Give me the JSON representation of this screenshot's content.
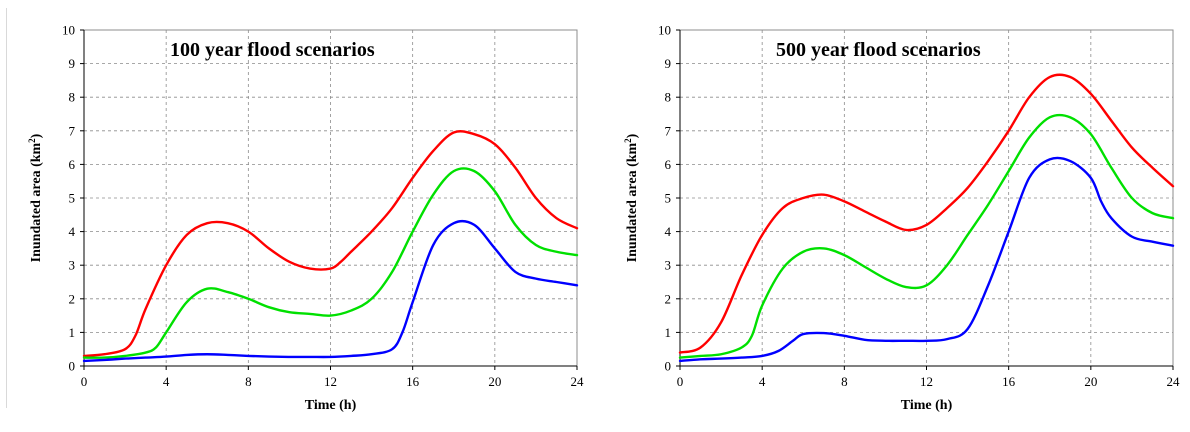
{
  "chart_data": [
    {
      "type": "line",
      "title": "100 year flood scenarios",
      "xlabel": "Time (h)",
      "ylabel_main": "Inundated area (km",
      "ylabel_sup": "2",
      "ylabel_tail": ")",
      "xlim": [
        0,
        24
      ],
      "ylim": [
        0,
        10
      ],
      "xticks": [
        0,
        4,
        8,
        12,
        16,
        20,
        24
      ],
      "yticks": [
        0,
        1,
        2,
        3,
        4,
        5,
        6,
        7,
        8,
        9,
        10
      ],
      "grid": true,
      "series": [
        {
          "color": "#ff0000",
          "x": [
            0,
            1,
            2,
            2.5,
            3,
            4,
            5,
            6,
            7,
            8,
            9,
            10,
            11,
            12,
            12.5,
            13,
            14,
            15,
            16,
            17,
            18,
            19,
            20,
            21,
            22,
            23,
            24
          ],
          "y": [
            0.3,
            0.35,
            0.5,
            0.9,
            1.7,
            3.0,
            3.9,
            4.25,
            4.25,
            4.0,
            3.5,
            3.1,
            2.9,
            2.9,
            3.1,
            3.4,
            4.0,
            4.7,
            5.6,
            6.4,
            6.95,
            6.9,
            6.6,
            5.9,
            5.0,
            4.4,
            4.1
          ]
        },
        {
          "color": "#00e000",
          "x": [
            0,
            1,
            2,
            3,
            3.5,
            4,
            5,
            6,
            7,
            8,
            9,
            10,
            11,
            12,
            13,
            14,
            15,
            16,
            17,
            18,
            19,
            20,
            21,
            22,
            23,
            24
          ],
          "y": [
            0.25,
            0.25,
            0.3,
            0.4,
            0.55,
            1.0,
            1.9,
            2.3,
            2.2,
            2.0,
            1.75,
            1.6,
            1.55,
            1.5,
            1.65,
            2.0,
            2.8,
            4.0,
            5.1,
            5.8,
            5.8,
            5.2,
            4.2,
            3.6,
            3.4,
            3.3
          ]
        },
        {
          "color": "#0000ff",
          "x": [
            0,
            1,
            2,
            3,
            4,
            5,
            6,
            7,
            8,
            9,
            10,
            11,
            12,
            13,
            14,
            15,
            15.5,
            16,
            17,
            18,
            19,
            20,
            21,
            22,
            23,
            24
          ],
          "y": [
            0.15,
            0.18,
            0.22,
            0.25,
            0.28,
            0.33,
            0.35,
            0.33,
            0.3,
            0.28,
            0.27,
            0.27,
            0.27,
            0.3,
            0.35,
            0.5,
            1.0,
            1.9,
            3.6,
            4.25,
            4.2,
            3.5,
            2.8,
            2.6,
            2.5,
            2.4
          ]
        }
      ]
    },
    {
      "type": "line",
      "title": "500 year flood scenarios",
      "xlabel": "Time (h)",
      "ylabel_main": "Inundated area (km",
      "ylabel_sup": "2",
      "ylabel_tail": ")",
      "xlim": [
        0,
        24
      ],
      "ylim": [
        0,
        10
      ],
      "xticks": [
        0,
        4,
        8,
        12,
        16,
        20,
        24
      ],
      "yticks": [
        0,
        1,
        2,
        3,
        4,
        5,
        6,
        7,
        8,
        9,
        10
      ],
      "grid": true,
      "series": [
        {
          "color": "#ff0000",
          "x": [
            0,
            1,
            2,
            3,
            4,
            5,
            6,
            7,
            8,
            9,
            10,
            11,
            12,
            13,
            14,
            15,
            16,
            17,
            18,
            19,
            20,
            21,
            22,
            23,
            24
          ],
          "y": [
            0.4,
            0.55,
            1.3,
            2.7,
            3.9,
            4.7,
            5.0,
            5.1,
            4.9,
            4.6,
            4.3,
            4.05,
            4.2,
            4.7,
            5.3,
            6.1,
            7.0,
            8.0,
            8.6,
            8.6,
            8.1,
            7.3,
            6.5,
            5.9,
            5.35
          ]
        },
        {
          "color": "#00e000",
          "x": [
            0,
            1,
            2,
            3,
            3.5,
            4,
            5,
            6,
            7,
            8,
            9,
            10,
            11,
            12,
            13,
            14,
            15,
            16,
            17,
            18,
            19,
            20,
            21,
            22,
            23,
            24
          ],
          "y": [
            0.25,
            0.3,
            0.35,
            0.55,
            0.9,
            1.8,
            2.9,
            3.4,
            3.5,
            3.3,
            2.95,
            2.6,
            2.35,
            2.4,
            3.0,
            3.9,
            4.8,
            5.8,
            6.8,
            7.4,
            7.4,
            6.9,
            5.9,
            5.0,
            4.55,
            4.4
          ]
        },
        {
          "color": "#0000ff",
          "x": [
            0,
            1,
            2,
            3,
            4,
            4.8,
            5.5,
            6,
            7,
            8,
            9,
            10,
            11,
            12,
            13,
            14,
            15,
            16,
            17,
            18,
            19,
            20,
            20.5,
            21,
            22,
            23,
            24
          ],
          "y": [
            0.15,
            0.2,
            0.22,
            0.25,
            0.3,
            0.45,
            0.75,
            0.95,
            0.98,
            0.9,
            0.78,
            0.75,
            0.75,
            0.75,
            0.8,
            1.1,
            2.4,
            4.0,
            5.6,
            6.15,
            6.1,
            5.6,
            4.9,
            4.4,
            3.85,
            3.7,
            3.58
          ]
        }
      ]
    }
  ]
}
